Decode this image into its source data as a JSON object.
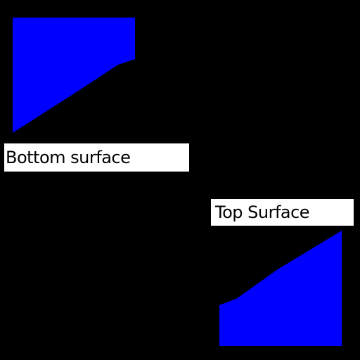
{
  "background_color": "#000000",
  "shape_color": "#0000ff",
  "label_background": "#ffffff",
  "label_text_color": "#000000",
  "labels": {
    "bottom_surface": "Bottom surface",
    "top_surface": "Top Surface"
  }
}
